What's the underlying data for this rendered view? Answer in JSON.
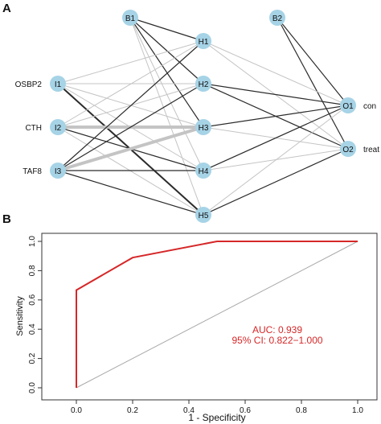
{
  "panels": {
    "a": {
      "label": "A"
    },
    "b": {
      "label": "B"
    }
  },
  "network": {
    "bias_nodes": [
      {
        "id": "B1",
        "label": "B1"
      },
      {
        "id": "B2",
        "label": "B2"
      }
    ],
    "input_nodes": [
      {
        "id": "I1",
        "label": "I1",
        "name": "OSBP2"
      },
      {
        "id": "I2",
        "label": "I2",
        "name": "CTH"
      },
      {
        "id": "I3",
        "label": "I3",
        "name": "TAF8"
      }
    ],
    "hidden_nodes": [
      {
        "id": "H1",
        "label": "H1"
      },
      {
        "id": "H2",
        "label": "H2"
      },
      {
        "id": "H3",
        "label": "H3"
      },
      {
        "id": "H4",
        "label": "H4"
      },
      {
        "id": "H5",
        "label": "H5"
      }
    ],
    "output_nodes": [
      {
        "id": "O1",
        "label": "O1",
        "name": "con"
      },
      {
        "id": "O2",
        "label": "O2",
        "name": "treat"
      }
    ],
    "edges": [
      {
        "from": "B1",
        "to": "H1",
        "color": "dark",
        "weight": 1.2
      },
      {
        "from": "B1",
        "to": "H2",
        "color": "dark",
        "weight": 1.2
      },
      {
        "from": "B1",
        "to": "H3",
        "color": "dark",
        "weight": 1.2
      },
      {
        "from": "B1",
        "to": "H4",
        "color": "light",
        "weight": 1.0
      },
      {
        "from": "B1",
        "to": "H5",
        "color": "light",
        "weight": 1.0
      },
      {
        "from": "I1",
        "to": "H1",
        "color": "light",
        "weight": 1.0
      },
      {
        "from": "I1",
        "to": "H2",
        "color": "light",
        "weight": 1.0
      },
      {
        "from": "I1",
        "to": "H3",
        "color": "light",
        "weight": 1.0
      },
      {
        "from": "I1",
        "to": "H4",
        "color": "light",
        "weight": 1.0
      },
      {
        "from": "I1",
        "to": "H5",
        "color": "dark",
        "weight": 2.0
      },
      {
        "from": "I2",
        "to": "H1",
        "color": "light",
        "weight": 1.0
      },
      {
        "from": "I2",
        "to": "H2",
        "color": "light",
        "weight": 1.0
      },
      {
        "from": "I2",
        "to": "H3",
        "color": "light",
        "weight": 4.0
      },
      {
        "from": "I2",
        "to": "H4",
        "color": "dark",
        "weight": 1.2
      },
      {
        "from": "I2",
        "to": "H5",
        "color": "light",
        "weight": 1.0
      },
      {
        "from": "I3",
        "to": "H1",
        "color": "dark",
        "weight": 1.2
      },
      {
        "from": "I3",
        "to": "H2",
        "color": "dark",
        "weight": 1.2
      },
      {
        "from": "I3",
        "to": "H3",
        "color": "light",
        "weight": 4.0
      },
      {
        "from": "I3",
        "to": "H4",
        "color": "dark",
        "weight": 1.2
      },
      {
        "from": "I3",
        "to": "H5",
        "color": "dark",
        "weight": 1.2
      },
      {
        "from": "B2",
        "to": "O1",
        "color": "dark",
        "weight": 1.2
      },
      {
        "from": "B2",
        "to": "O2",
        "color": "dark",
        "weight": 1.2
      },
      {
        "from": "H1",
        "to": "O1",
        "color": "light",
        "weight": 1.0
      },
      {
        "from": "H1",
        "to": "O2",
        "color": "light",
        "weight": 1.0
      },
      {
        "from": "H2",
        "to": "O1",
        "color": "dark",
        "weight": 1.2
      },
      {
        "from": "H2",
        "to": "O2",
        "color": "dark",
        "weight": 1.2
      },
      {
        "from": "H3",
        "to": "O1",
        "color": "dark",
        "weight": 1.2
      },
      {
        "from": "H3",
        "to": "O2",
        "color": "light",
        "weight": 1.0
      },
      {
        "from": "H4",
        "to": "O1",
        "color": "dark",
        "weight": 1.2
      },
      {
        "from": "H4",
        "to": "O2",
        "color": "light",
        "weight": 1.0
      },
      {
        "from": "H5",
        "to": "O1",
        "color": "light",
        "weight": 1.0
      },
      {
        "from": "H5",
        "to": "O2",
        "color": "dark",
        "weight": 1.2
      }
    ],
    "colors": {
      "node_fill": "#a6d3e6",
      "edge_dark": "#2b2b2b",
      "edge_light": "#c4c4c4"
    }
  },
  "chart_data": {
    "type": "line",
    "title": "",
    "xlabel": "1 - Specificity",
    "ylabel": "Sensitivity",
    "xlim": [
      0,
      1
    ],
    "ylim": [
      0,
      1
    ],
    "x_ticks": [
      "0.0",
      "0.2",
      "0.4",
      "0.6",
      "0.8",
      "1.0"
    ],
    "y_ticks": [
      "0.0",
      "0.2",
      "0.4",
      "0.6",
      "0.8",
      "1.0"
    ],
    "series": [
      {
        "x": [
          0.0,
          0.0,
          0.2,
          0.5,
          1.0
        ],
        "y": [
          0.0,
          0.667,
          0.889,
          1.0,
          1.0
        ],
        "color": "#d62728"
      }
    ],
    "reference_line": {
      "x": [
        0,
        1
      ],
      "y": [
        0,
        1
      ],
      "color": "#a9a9a9"
    },
    "annotations": [
      {
        "text": "AUC: 0.939",
        "color": "#d62728"
      },
      {
        "text": "95% CI: 0.822−1.000",
        "color": "#d62728"
      }
    ]
  }
}
